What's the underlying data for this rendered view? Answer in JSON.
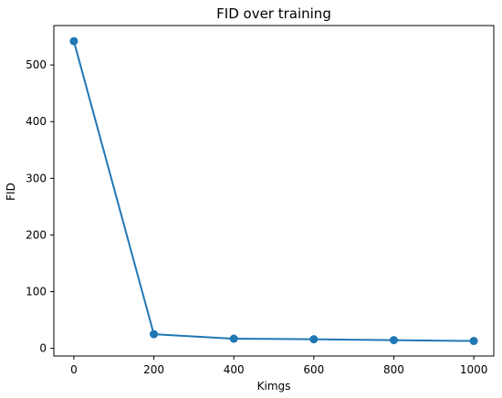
{
  "chart_data": {
    "type": "line",
    "title": "FID over training",
    "xlabel": "Kimgs",
    "ylabel": "FID",
    "x": [
      0,
      200,
      400,
      600,
      800,
      1000
    ],
    "series": [
      {
        "values": [
          542,
          25,
          17,
          16,
          14.5,
          13
        ]
      }
    ],
    "xlim": [
      -50,
      1050
    ],
    "ylim": [
      -13.5,
      569.5
    ],
    "xticks": [
      0,
      200,
      400,
      600,
      800,
      1000
    ],
    "yticks": [
      0,
      100,
      200,
      300,
      400,
      500
    ],
    "xtick_labels": [
      "0",
      "200",
      "400",
      "600",
      "800",
      "1000"
    ],
    "ytick_labels": [
      "0",
      "100",
      "200",
      "300",
      "400",
      "500"
    ],
    "grid": false,
    "legend": "none",
    "color": "#1f77b4"
  }
}
